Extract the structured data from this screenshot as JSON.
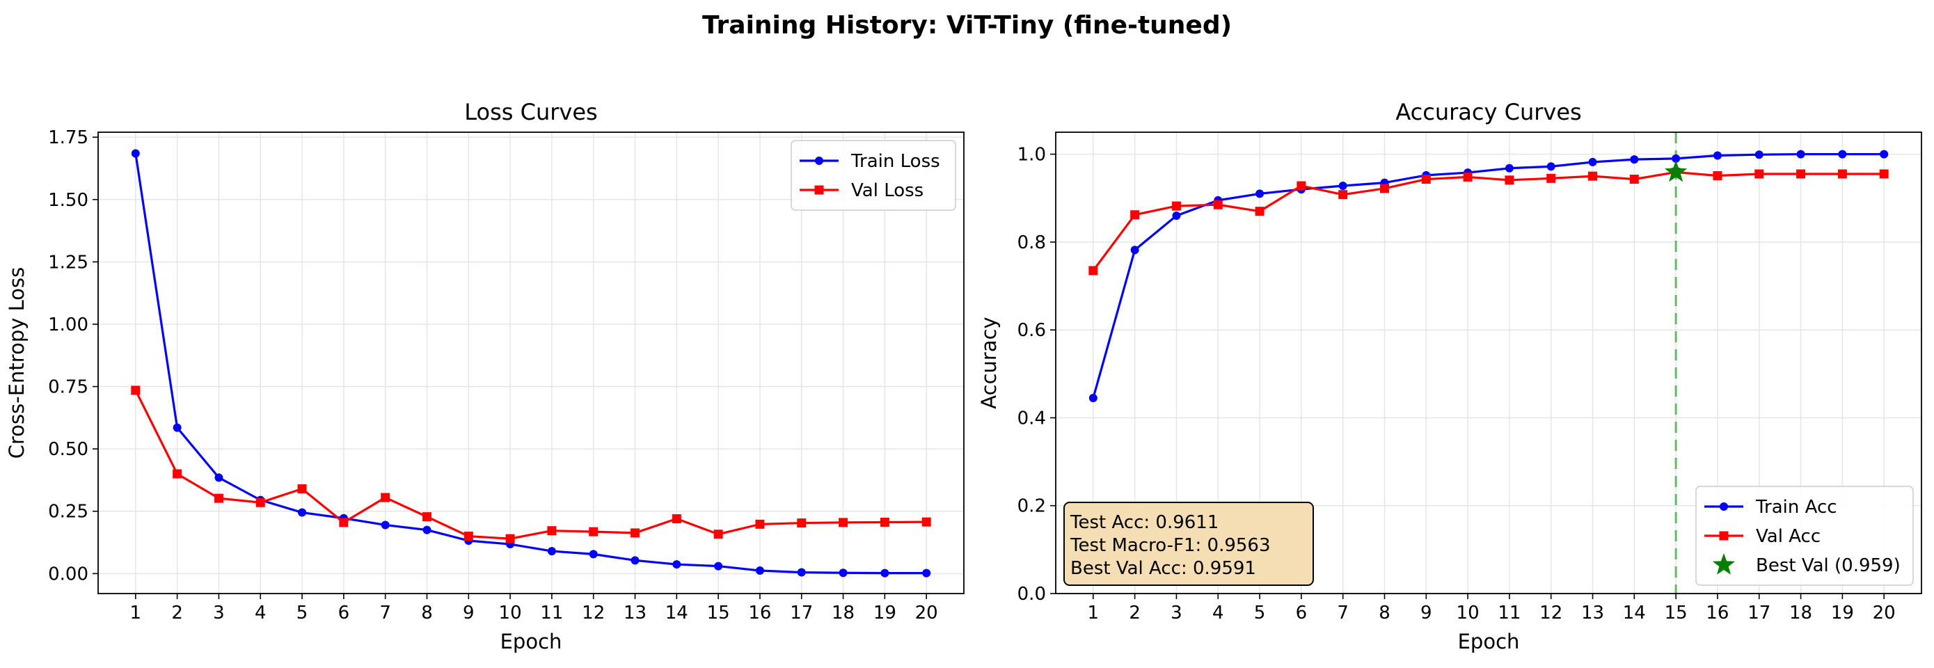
{
  "figure": {
    "title": "Training History: ViT-Tiny (fine-tuned)"
  },
  "colors": {
    "train": "#0000ff",
    "val": "#ff0000",
    "best": "#008000",
    "best_line": "#4caf50",
    "annotation_bg": "#f5deb3",
    "grid": "#e6e6e6"
  },
  "chart_data": [
    {
      "type": "line",
      "title": "Loss Curves",
      "xlabel": "Epoch",
      "ylabel": "Cross-Entropy Loss",
      "x": [
        1,
        2,
        3,
        4,
        5,
        6,
        7,
        8,
        9,
        10,
        11,
        12,
        13,
        14,
        15,
        16,
        17,
        18,
        19,
        20
      ],
      "xlim": [
        0.1,
        20.9
      ],
      "ylim": [
        -0.08,
        1.77
      ],
      "yticks": [
        0.0,
        0.25,
        0.5,
        0.75,
        1.0,
        1.25,
        1.5,
        1.75
      ],
      "ytick_labels": [
        "0.00",
        "0.25",
        "0.50",
        "0.75",
        "1.00",
        "1.25",
        "1.50",
        "1.75"
      ],
      "grid": true,
      "legend_position": "upper right",
      "series": [
        {
          "name": "Train Loss",
          "marker": "circle",
          "values": [
            1.685,
            0.585,
            0.385,
            0.295,
            0.245,
            0.222,
            0.195,
            0.175,
            0.132,
            0.118,
            0.09,
            0.078,
            0.053,
            0.037,
            0.03,
            0.012,
            0.005,
            0.003,
            0.002,
            0.002
          ]
        },
        {
          "name": "Val Loss",
          "marker": "square",
          "values": [
            0.735,
            0.4,
            0.302,
            0.285,
            0.34,
            0.205,
            0.305,
            0.228,
            0.15,
            0.14,
            0.172,
            0.168,
            0.163,
            0.22,
            0.158,
            0.198,
            0.203,
            0.205,
            0.206,
            0.207
          ]
        }
      ]
    },
    {
      "type": "line",
      "title": "Accuracy Curves",
      "xlabel": "Epoch",
      "ylabel": "Accuracy",
      "x": [
        1,
        2,
        3,
        4,
        5,
        6,
        7,
        8,
        9,
        10,
        11,
        12,
        13,
        14,
        15,
        16,
        17,
        18,
        19,
        20
      ],
      "xlim": [
        0.1,
        20.9
      ],
      "ylim": [
        0.0,
        1.05
      ],
      "yticks": [
        0.0,
        0.2,
        0.4,
        0.6,
        0.8,
        1.0
      ],
      "ytick_labels": [
        "0.0",
        "0.2",
        "0.4",
        "0.6",
        "0.8",
        "1.0"
      ],
      "grid": true,
      "legend_position": "lower right",
      "series": [
        {
          "name": "Train Acc",
          "marker": "circle",
          "values": [
            0.445,
            0.782,
            0.86,
            0.895,
            0.91,
            0.92,
            0.928,
            0.935,
            0.952,
            0.958,
            0.968,
            0.972,
            0.982,
            0.988,
            0.99,
            0.997,
            0.999,
            1.0,
            1.0,
            1.0
          ]
        },
        {
          "name": "Val Acc",
          "marker": "square",
          "values": [
            0.735,
            0.862,
            0.882,
            0.885,
            0.87,
            0.928,
            0.908,
            0.922,
            0.943,
            0.948,
            0.941,
            0.945,
            0.95,
            0.943,
            0.959,
            0.951,
            0.955,
            0.955,
            0.955,
            0.955
          ]
        }
      ],
      "best_marker": {
        "name": "Best Val (0.959)",
        "epoch": 15,
        "value": 0.959,
        "marker": "star"
      },
      "vline": {
        "x": 15,
        "style": "dashed"
      },
      "annotation": {
        "position": "lower left",
        "lines": [
          "Test Acc: 0.9611",
          "Test Macro-F1: 0.9563",
          "Best Val Acc: 0.9591"
        ]
      }
    }
  ]
}
